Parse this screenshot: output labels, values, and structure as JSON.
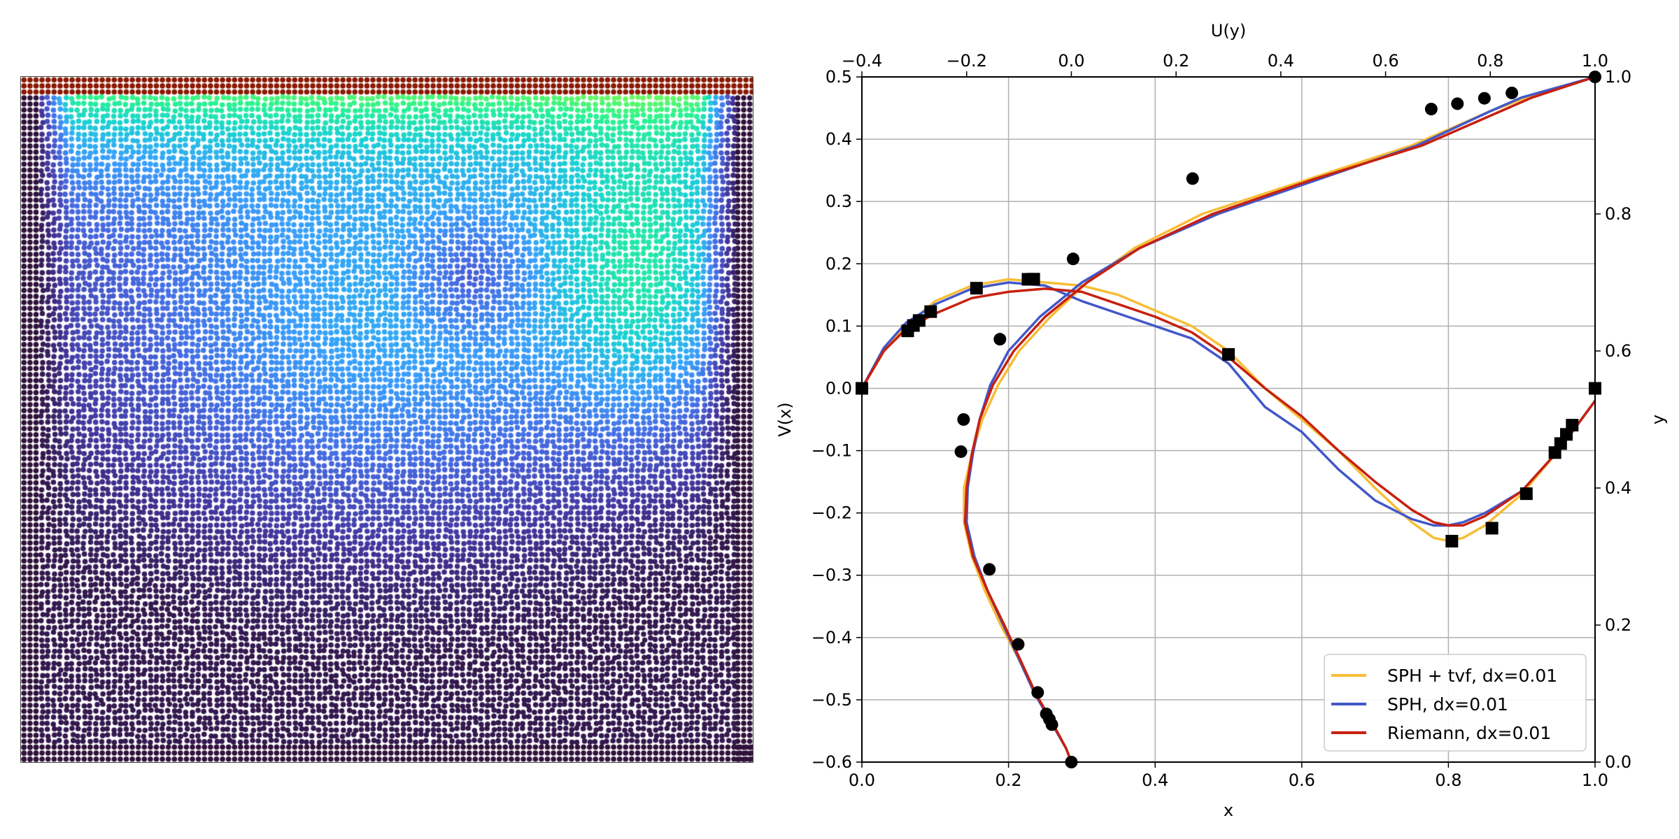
{
  "left_panel": {
    "type": "particle-scatter",
    "colormap": "turbo",
    "lid_color": "#8b1a04",
    "wall_color": "#30123b"
  },
  "chart_data": {
    "type": "line",
    "xlabel": "x",
    "ylabel": "V(x)",
    "x2label": "U(y)",
    "y2label": "y",
    "xlim": [
      0.0,
      1.0
    ],
    "ylim": [
      -0.6,
      0.5
    ],
    "x2lim": [
      -0.4,
      1.0
    ],
    "y2lim": [
      0.0,
      1.0
    ],
    "grid": true,
    "legend_placement": "lower-right",
    "xticks": [
      "0.0",
      "0.2",
      "0.4",
      "0.6",
      "0.8",
      "1.0"
    ],
    "yticks": [
      "0.5",
      "0.4",
      "0.3",
      "0.2",
      "0.1",
      "0.0",
      "−0.1",
      "−0.2",
      "−0.3",
      "−0.4",
      "−0.5",
      "−0.6"
    ],
    "x2ticks": [
      "−0.4",
      "−0.2",
      "0.0",
      "0.2",
      "0.4",
      "0.6",
      "0.8",
      "1.0"
    ],
    "y2ticks": [
      "1.0",
      "0.8",
      "0.6",
      "0.4",
      "0.2",
      "0.0"
    ],
    "series": [
      {
        "name": "SPH + tvf, dx=0.01",
        "color": "#f7bd35",
        "v_profile": {
          "x": [
            0.0,
            0.03,
            0.06,
            0.1,
            0.15,
            0.2,
            0.25,
            0.3,
            0.35,
            0.4,
            0.45,
            0.5,
            0.55,
            0.6,
            0.65,
            0.7,
            0.75,
            0.78,
            0.8,
            0.82,
            0.85,
            0.9,
            0.95,
            1.0
          ],
          "y": [
            0.0,
            0.06,
            0.1,
            0.14,
            0.165,
            0.175,
            0.17,
            0.165,
            0.15,
            0.125,
            0.1,
            0.06,
            0.0,
            -0.05,
            -0.1,
            -0.16,
            -0.215,
            -0.24,
            -0.245,
            -0.24,
            -0.22,
            -0.17,
            -0.1,
            -0.02
          ]
        },
        "u_profile": {
          "y": [
            0.0,
            0.02,
            0.06,
            0.1,
            0.15,
            0.2,
            0.25,
            0.3,
            0.35,
            0.4,
            0.45,
            0.5,
            0.55,
            0.6,
            0.65,
            0.7,
            0.75,
            0.8,
            0.85,
            0.9,
            0.95,
            0.97,
            1.0
          ],
          "u": [
            0.0,
            -0.01,
            -0.04,
            -0.07,
            -0.1,
            -0.135,
            -0.165,
            -0.19,
            -0.205,
            -0.205,
            -0.19,
            -0.17,
            -0.14,
            -0.1,
            -0.04,
            0.03,
            0.12,
            0.25,
            0.45,
            0.65,
            0.8,
            0.87,
            1.0
          ]
        }
      },
      {
        "name": "SPH, dx=0.01",
        "color": "#4258c9",
        "v_profile": {
          "x": [
            0.0,
            0.03,
            0.06,
            0.1,
            0.15,
            0.2,
            0.25,
            0.3,
            0.35,
            0.4,
            0.45,
            0.5,
            0.55,
            0.6,
            0.65,
            0.7,
            0.75,
            0.78,
            0.8,
            0.82,
            0.85,
            0.9,
            0.95,
            1.0
          ],
          "y": [
            0.0,
            0.065,
            0.105,
            0.135,
            0.16,
            0.17,
            0.165,
            0.14,
            0.12,
            0.1,
            0.08,
            0.04,
            -0.03,
            -0.07,
            -0.13,
            -0.18,
            -0.21,
            -0.22,
            -0.22,
            -0.215,
            -0.2,
            -0.165,
            -0.1,
            -0.02
          ]
        },
        "u_profile": {
          "y": [
            0.0,
            0.02,
            0.06,
            0.1,
            0.15,
            0.2,
            0.25,
            0.3,
            0.35,
            0.4,
            0.45,
            0.5,
            0.55,
            0.6,
            0.65,
            0.7,
            0.75,
            0.8,
            0.85,
            0.9,
            0.95,
            0.97,
            1.0
          ],
          "u": [
            0.0,
            -0.01,
            -0.04,
            -0.07,
            -0.1,
            -0.13,
            -0.16,
            -0.185,
            -0.2,
            -0.198,
            -0.188,
            -0.175,
            -0.155,
            -0.12,
            -0.06,
            0.02,
            0.13,
            0.28,
            0.47,
            0.66,
            0.8,
            0.86,
            1.0
          ]
        }
      },
      {
        "name": "Riemann, dx=0.01",
        "color": "#c7200f",
        "v_profile": {
          "x": [
            0.0,
            0.03,
            0.06,
            0.1,
            0.15,
            0.2,
            0.25,
            0.3,
            0.35,
            0.4,
            0.45,
            0.5,
            0.55,
            0.6,
            0.65,
            0.7,
            0.75,
            0.78,
            0.8,
            0.82,
            0.85,
            0.9,
            0.95,
            1.0
          ],
          "y": [
            0.0,
            0.06,
            0.095,
            0.12,
            0.145,
            0.155,
            0.16,
            0.155,
            0.135,
            0.115,
            0.09,
            0.05,
            0.0,
            -0.045,
            -0.1,
            -0.15,
            -0.195,
            -0.215,
            -0.22,
            -0.22,
            -0.205,
            -0.165,
            -0.1,
            -0.02
          ]
        },
        "u_profile": {
          "y": [
            0.0,
            0.02,
            0.06,
            0.1,
            0.15,
            0.2,
            0.25,
            0.3,
            0.35,
            0.4,
            0.45,
            0.5,
            0.55,
            0.6,
            0.65,
            0.7,
            0.75,
            0.8,
            0.85,
            0.9,
            0.95,
            0.97,
            1.0
          ],
          "u": [
            0.0,
            -0.01,
            -0.038,
            -0.068,
            -0.098,
            -0.128,
            -0.16,
            -0.188,
            -0.203,
            -0.2,
            -0.19,
            -0.175,
            -0.15,
            -0.11,
            -0.05,
            0.03,
            0.13,
            0.27,
            0.46,
            0.67,
            0.82,
            0.88,
            1.0
          ]
        }
      }
    ],
    "reference_v": {
      "marker": "square",
      "x": [
        0.0,
        0.0625,
        0.0703,
        0.0781,
        0.0938,
        0.1563,
        0.2266,
        0.2344,
        0.5,
        0.8047,
        0.8594,
        0.9063,
        0.9453,
        0.9531,
        0.9609,
        0.9688,
        1.0
      ],
      "y": [
        0.0,
        0.0923,
        0.1009,
        0.1089,
        0.1232,
        0.1608,
        0.1751,
        0.1753,
        0.0545,
        -0.2453,
        -0.2245,
        -0.1691,
        -0.1031,
        -0.0886,
        -0.0739,
        -0.0591,
        0.0
      ]
    },
    "reference_u": {
      "marker": "circle",
      "y": [
        0.0,
        0.0547,
        0.0625,
        0.0703,
        0.1016,
        0.1719,
        0.2813,
        0.4531,
        0.5,
        0.6172,
        0.7344,
        0.8516,
        0.9531,
        0.9609,
        0.9688,
        0.9766,
        1.0
      ],
      "u": [
        0.0,
        -0.0372,
        -0.0419,
        -0.0478,
        -0.0643,
        -0.1015,
        -0.1566,
        -0.2109,
        -0.2058,
        -0.1364,
        0.0033,
        0.2315,
        0.6872,
        0.7372,
        0.7887,
        0.8412,
        1.0
      ]
    }
  }
}
